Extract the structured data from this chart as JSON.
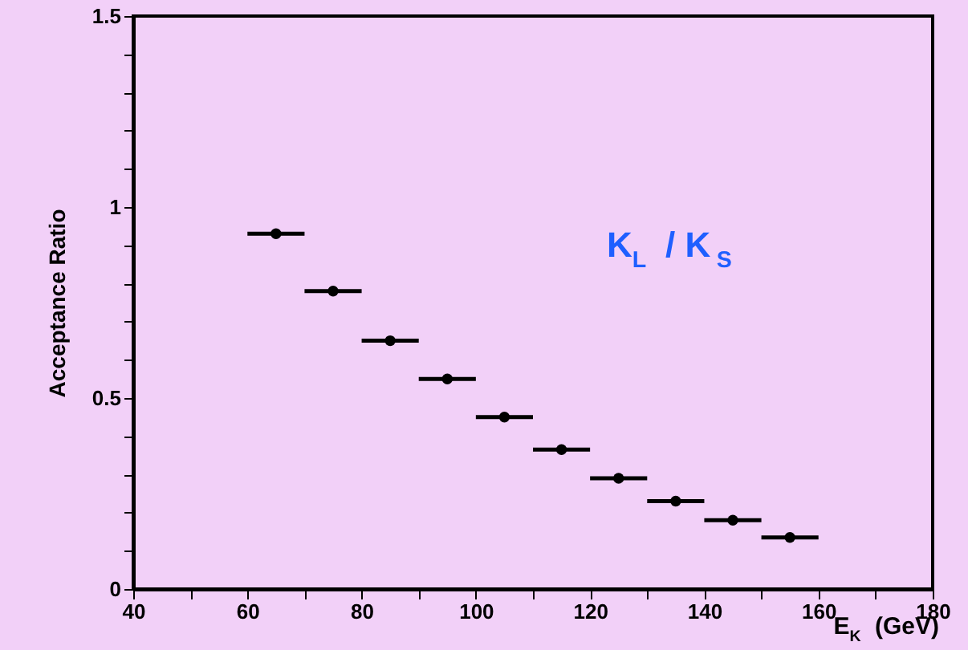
{
  "chart_data": {
    "type": "scatter",
    "xlabel": "E$_{K}$ (GeV)",
    "ylabel": "Acceptance Ratio",
    "annotations": [
      "K$_{L}$ / K$_{S}$"
    ],
    "x": [
      65,
      75,
      85,
      95,
      105,
      115,
      125,
      135,
      145,
      155
    ],
    "values": [
      0.93,
      0.78,
      0.65,
      0.55,
      0.45,
      0.365,
      0.29,
      0.23,
      0.18,
      0.135
    ],
    "xerrors": [
      5,
      5,
      5,
      5,
      5,
      5,
      5,
      5,
      5,
      5
    ],
    "color": "#000000",
    "marker": "circle",
    "grid": false,
    "xlim": [
      40,
      180
    ],
    "ylim": [
      0,
      1.5
    ],
    "xticks": [
      40,
      {
        "value": 50,
        "label": null
      },
      60,
      {
        "value": 70,
        "label": null
      },
      80,
      {
        "value": 90,
        "label": null
      },
      100,
      {
        "value": 110,
        "label": null
      },
      120,
      {
        "value": 130,
        "label": null
      },
      140,
      {
        "value": 150,
        "label": null
      },
      160,
      {
        "value": 170,
        "label": null
      },
      180
    ],
    "yticks": [
      0,
      {
        "value": 0.1,
        "label": null
      },
      {
        "value": 0.2,
        "label": null
      },
      {
        "value": 0.3,
        "label": null
      },
      {
        "value": 0.4,
        "label": null
      },
      0.5,
      {
        "value": 0.6,
        "label": null
      },
      {
        "value": 0.7,
        "label": null
      },
      {
        "value": 0.8,
        "label": null
      },
      {
        "value": 0.9,
        "label": null
      },
      1,
      {
        "value": 1.1,
        "label": null
      },
      {
        "value": 1.2,
        "label": null
      },
      {
        "value": 1.3,
        "label": null
      },
      {
        "value": 1.4,
        "label": null
      },
      1.5
    ]
  }
}
